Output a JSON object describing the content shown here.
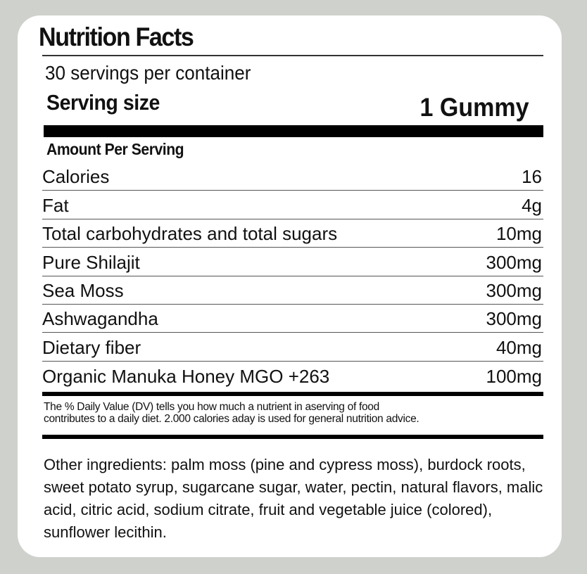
{
  "label": {
    "title": "Nutrition Facts",
    "servings_per_container": "30 servings per container",
    "serving_size_label": "Serving size",
    "serving_size_value": "1 Gummy",
    "amount_per_serving": "Amount Per Serving",
    "rows": [
      {
        "name": "Calories",
        "value": "16"
      },
      {
        "name": "Fat",
        "value": "4g"
      },
      {
        "name": "Total carbohydrates and total sugars",
        "value": "10mg"
      },
      {
        "name": "Pure Shilajit",
        "value": "300mg"
      },
      {
        "name": "Sea Moss",
        "value": "300mg"
      },
      {
        "name": "Ashwagandha",
        "value": "300mg"
      },
      {
        "name": "Dietary fiber",
        "value": "40mg"
      },
      {
        "name": "Organic Manuka Honey MGO +263",
        "value": "100mg"
      }
    ],
    "dv_note_line1": "The % Daily Value (DV) tells you how much a nutrient in aserving of food",
    "dv_note_line2": "contributes to a daily diet. 2.000 calories aday is used for general nutrition advice.",
    "other_ingredients": "Other ingredients: palm moss (pine and cypress moss), burdock roots, sweet potato syrup, sugarcane sugar, water, pectin, natural flavors, malic acid, citric acid, sodium citrate, fruit and vegetable juice (colored), sunflower lecithin."
  }
}
